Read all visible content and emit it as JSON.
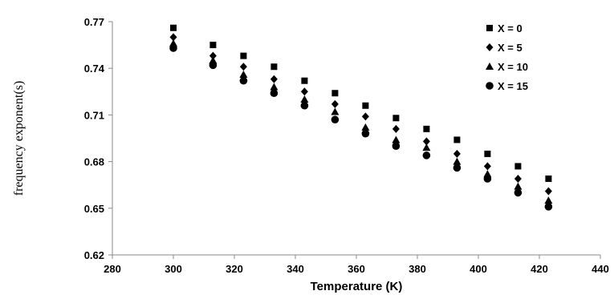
{
  "chart_data": {
    "type": "scatter",
    "title": "",
    "xlabel": "Temperature (K)",
    "ylabel": "frequency exponent(s)",
    "xlim": [
      280,
      440
    ],
    "ylim": [
      0.62,
      0.77
    ],
    "x_ticks": [
      "280",
      "300",
      "320",
      "340",
      "360",
      "380",
      "400",
      "420",
      "440"
    ],
    "y_ticks": [
      "0.62",
      "0.65",
      "0.68",
      "0.71",
      "0.74",
      "0.77"
    ],
    "grid": false,
    "legend_position": "top-right",
    "x": [
      300,
      313,
      323,
      333,
      343,
      353,
      363,
      373,
      383,
      393,
      403,
      413,
      423
    ],
    "series": [
      {
        "name": "X = 0",
        "marker": "square",
        "values": [
          0.766,
          0.755,
          0.748,
          0.741,
          0.732,
          0.724,
          0.716,
          0.708,
          0.701,
          0.694,
          0.685,
          0.677,
          0.669
        ]
      },
      {
        "name": "X = 5",
        "marker": "diamond",
        "values": [
          0.76,
          0.748,
          0.741,
          0.733,
          0.725,
          0.717,
          0.709,
          0.701,
          0.693,
          0.685,
          0.677,
          0.669,
          0.661
        ]
      },
      {
        "name": "X = 10",
        "marker": "triangle",
        "values": [
          0.756,
          0.745,
          0.736,
          0.728,
          0.72,
          0.712,
          0.702,
          0.694,
          0.689,
          0.68,
          0.672,
          0.664,
          0.655
        ]
      },
      {
        "name": "X = 15",
        "marker": "circle",
        "values": [
          0.753,
          0.742,
          0.732,
          0.724,
          0.716,
          0.707,
          0.698,
          0.69,
          0.684,
          0.676,
          0.669,
          0.66,
          0.651
        ]
      }
    ]
  }
}
